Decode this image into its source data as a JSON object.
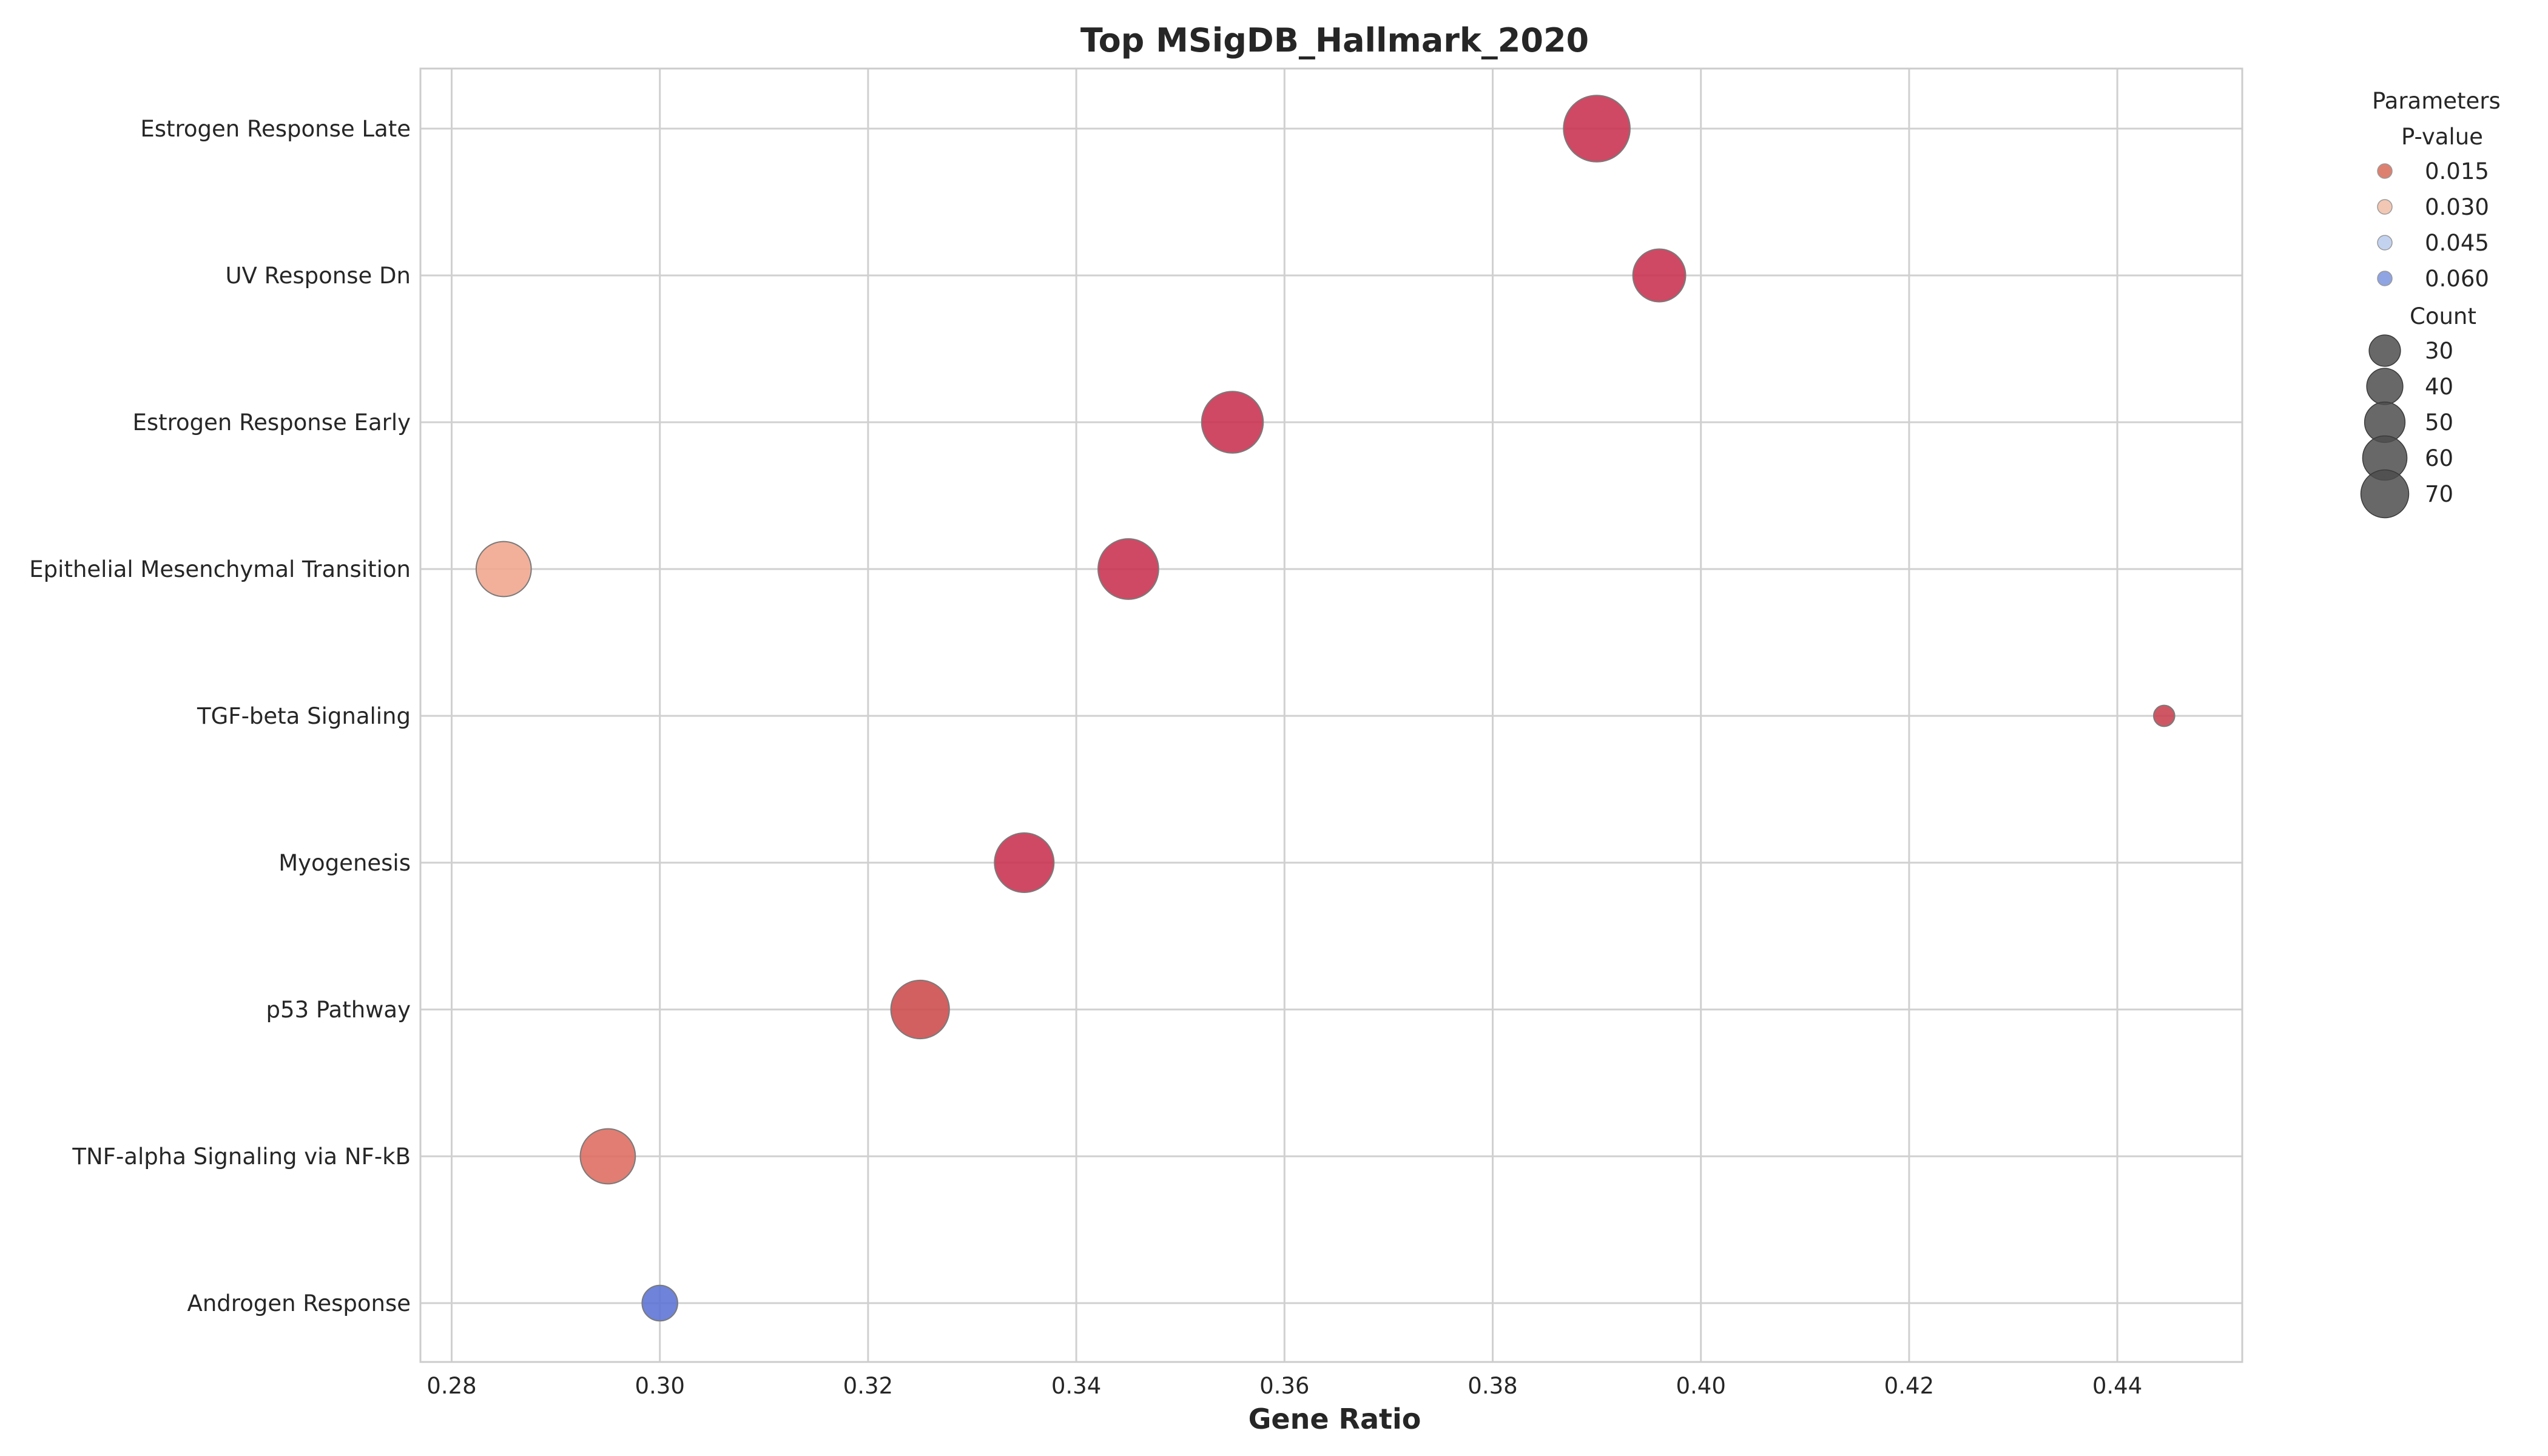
{
  "chart_data": {
    "type": "scatter",
    "title": "Top MSigDB_Hallmark_2020",
    "xlabel": "Gene Ratio",
    "ylabel": "",
    "xlim": [
      0.277,
      0.452
    ],
    "x_ticks": [
      "0.28",
      "0.30",
      "0.32",
      "0.34",
      "0.36",
      "0.38",
      "0.40",
      "0.42",
      "0.44"
    ],
    "x_tick_values": [
      0.28,
      0.3,
      0.32,
      0.34,
      0.36,
      0.38,
      0.4,
      0.42,
      0.44
    ],
    "grid": true,
    "categories": [
      "Estrogen Response Late",
      "UV Response Dn",
      "Estrogen Response Early",
      "Epithelial Mesenchymal Transition",
      "TGF-beta Signaling",
      "Myogenesis",
      "p53 Pathway",
      "TNF-alpha Signaling via NF-kB",
      "Androgen Response"
    ],
    "points": [
      {
        "term": "Estrogen Response Late",
        "gene_ratio": 0.39,
        "count": 70,
        "p_value": 0.0005,
        "color": "#c8304f"
      },
      {
        "term": "UV Response Dn",
        "gene_ratio": 0.396,
        "count": 44,
        "p_value": 0.001,
        "color": "#c8304f"
      },
      {
        "term": "Estrogen Response Early",
        "gene_ratio": 0.355,
        "count": 60,
        "p_value": 0.0008,
        "color": "#c8304f"
      },
      {
        "term": "Epithelial Mesenchymal Transition",
        "gene_ratio": 0.345,
        "count": 58,
        "p_value": 0.0012,
        "color": "#c8304f"
      },
      {
        "term": "Epithelial Mesenchymal Transition",
        "gene_ratio": 0.285,
        "count": 48,
        "p_value": 0.027,
        "color": "#f0a58c"
      },
      {
        "term": "TGF-beta Signaling",
        "gene_ratio": 0.4445,
        "count": 7,
        "p_value": 0.003,
        "color": "#c8404f"
      },
      {
        "term": "Myogenesis",
        "gene_ratio": 0.335,
        "count": 56,
        "p_value": 0.0015,
        "color": "#c8304f"
      },
      {
        "term": "p53 Pathway",
        "gene_ratio": 0.325,
        "count": 54,
        "p_value": 0.006,
        "color": "#cc4a4a"
      },
      {
        "term": "TNF-alpha Signaling via NF-kB",
        "gene_ratio": 0.295,
        "count": 48,
        "p_value": 0.014,
        "color": "#dd6b5e"
      },
      {
        "term": "Androgen Response",
        "gene_ratio": 0.3,
        "count": 20,
        "p_value": 0.065,
        "color": "#5a72d4"
      }
    ],
    "legend": {
      "placement": "right-top",
      "title": "Parameters",
      "pvalue_title": "P-value",
      "pvalue_entries": [
        {
          "label": "0.015",
          "color": "#dd8070"
        },
        {
          "label": "0.030",
          "color": "#f2c7b4"
        },
        {
          "label": "0.045",
          "color": "#c3d2ef"
        },
        {
          "label": "0.060",
          "color": "#8ea4e3"
        }
      ],
      "count_title": "Count",
      "count_entries": [
        {
          "label": "30",
          "count": 30
        },
        {
          "label": "40",
          "count": 40
        },
        {
          "label": "50",
          "count": 50
        },
        {
          "label": "60",
          "count": 60
        },
        {
          "label": "70",
          "count": 70
        }
      ]
    }
  }
}
